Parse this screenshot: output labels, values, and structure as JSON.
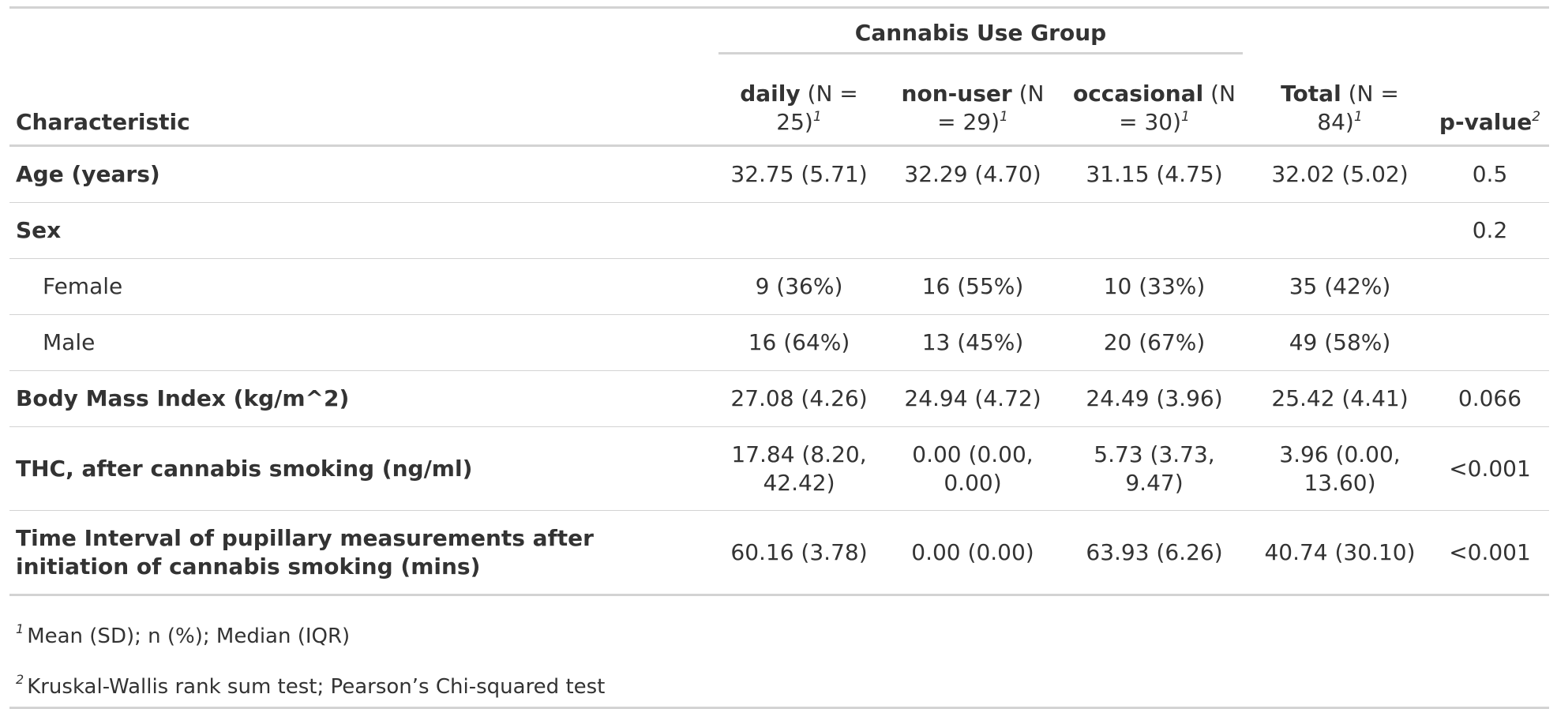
{
  "spanner": "Cannabis Use Group",
  "header": {
    "characteristic": "Characteristic",
    "columns": [
      {
        "name": "daily",
        "n": " (N = 25)",
        "fn": "1"
      },
      {
        "name": "non-user",
        "n": " (N = 29)",
        "fn": "1"
      },
      {
        "name": "occasional",
        "n": " (N = 30)",
        "fn": "1"
      },
      {
        "name": "Total",
        "n": " (N = 84)",
        "fn": "1"
      },
      {
        "name": "p-value",
        "n": "",
        "fn": "2"
      }
    ]
  },
  "rows": [
    {
      "label": "Age (years)",
      "style": "bold",
      "values": [
        "32.75 (5.71)",
        "32.29 (4.70)",
        "31.15 (4.75)",
        "32.02 (5.02)",
        "0.5"
      ]
    },
    {
      "label": "Sex",
      "style": "bold",
      "values": [
        "",
        "",
        "",
        "",
        "0.2"
      ]
    },
    {
      "label": "Female",
      "style": "indent",
      "values": [
        "9 (36%)",
        "16 (55%)",
        "10 (33%)",
        "35 (42%)",
        ""
      ]
    },
    {
      "label": "Male",
      "style": "indent",
      "values": [
        "16 (64%)",
        "13 (45%)",
        "20 (67%)",
        "49 (58%)",
        ""
      ]
    },
    {
      "label": "Body Mass Index (kg/m^2)",
      "style": "bold",
      "values": [
        "27.08 (4.26)",
        "24.94 (4.72)",
        "24.49 (3.96)",
        "25.42 (4.41)",
        "0.066"
      ]
    },
    {
      "label": "THC, after cannabis smoking (ng/ml)",
      "style": "bold",
      "values": [
        "17.84 (8.20, 42.42)",
        "0.00 (0.00, 0.00)",
        "5.73 (3.73, 9.47)",
        "3.96 (0.00, 13.60)",
        "<0.001"
      ]
    },
    {
      "label": "Time Interval of pupillary measurements after initiation of cannabis smoking (mins)",
      "style": "bold",
      "values": [
        "60.16 (3.78)",
        "0.00 (0.00)",
        "63.93 (6.26)",
        "40.74 (30.10)",
        "<0.001"
      ]
    }
  ],
  "footnotes": [
    {
      "mark": "1",
      "text": "Mean (SD); n (%); Median (IQR)"
    },
    {
      "mark": "2",
      "text": "Kruskal-Wallis rank sum test; Pearson’s Chi-squared test"
    }
  ]
}
